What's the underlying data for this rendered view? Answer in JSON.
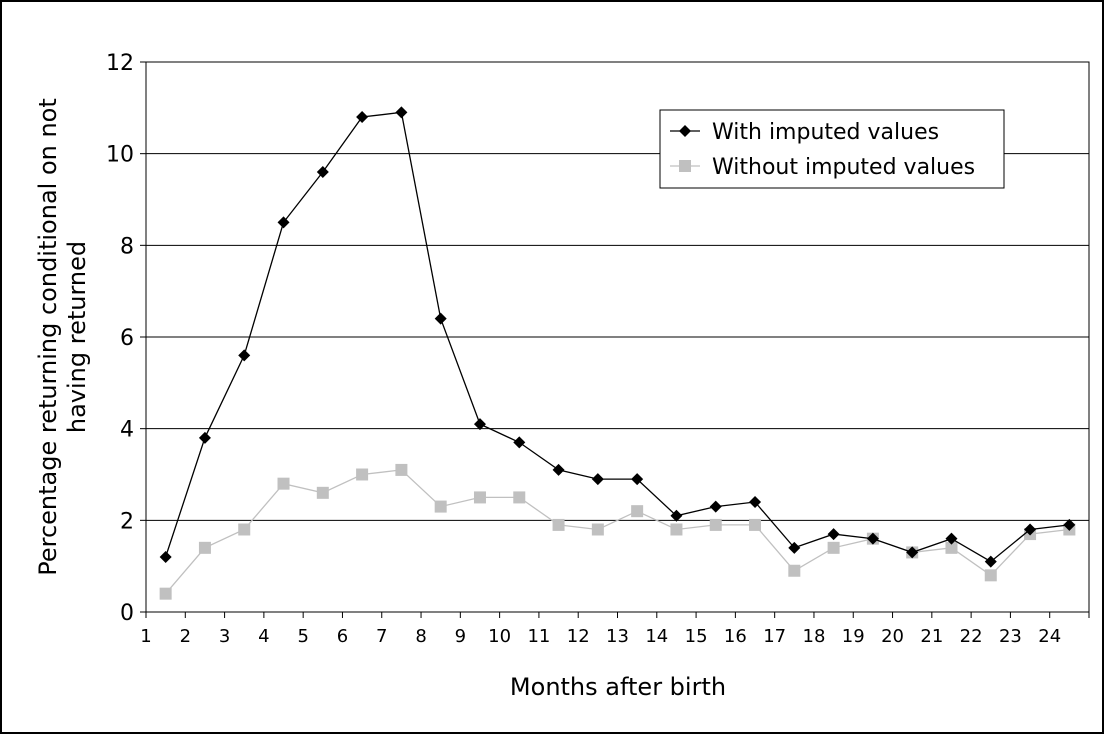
{
  "chart_data": {
    "type": "line",
    "xlabel": "Months after birth",
    "ylabel": "Percentage returning conditional on not having returned",
    "ylabel_lines": [
      "Percentage returning conditional on not",
      "having returned"
    ],
    "x_ticks": [
      "1",
      "2",
      "3",
      "4",
      "5",
      "6",
      "7",
      "8",
      "9",
      "10",
      "11",
      "12",
      "13",
      "14",
      "15",
      "16",
      "17",
      "18",
      "19",
      "20",
      "21",
      "22",
      "23",
      "24"
    ],
    "x_range": [
      1,
      25
    ],
    "ylim": [
      0,
      12
    ],
    "y_ticks": [
      0,
      2,
      4,
      6,
      8,
      10,
      12
    ],
    "grid": "horizontal",
    "legend_position": "top-right",
    "x": [
      1.5,
      2.5,
      3.5,
      4.5,
      5.5,
      6.5,
      7.5,
      8.5,
      9.5,
      10.5,
      11.5,
      12.5,
      13.5,
      14.5,
      15.5,
      16.5,
      17.5,
      18.5,
      19.5,
      20.5,
      21.5,
      22.5,
      23.5,
      24.5
    ],
    "series": [
      {
        "name": "With imputed values",
        "color": "#000000",
        "marker": "diamond",
        "values": [
          1.2,
          3.8,
          5.6,
          8.5,
          9.6,
          10.8,
          10.9,
          6.4,
          4.1,
          3.7,
          3.1,
          2.9,
          2.9,
          2.1,
          2.3,
          2.4,
          1.4,
          1.7,
          1.6,
          1.3,
          1.6,
          1.1,
          1.8,
          1.9
        ]
      },
      {
        "name": "Without imputed values",
        "color": "#c0c0c0",
        "marker": "square",
        "values": [
          0.4,
          1.4,
          1.8,
          2.8,
          2.6,
          3.0,
          3.1,
          2.3,
          2.5,
          2.5,
          1.9,
          1.8,
          2.2,
          1.8,
          1.9,
          1.9,
          0.9,
          1.4,
          1.6,
          1.3,
          1.4,
          0.8,
          1.7,
          1.8
        ]
      }
    ]
  }
}
